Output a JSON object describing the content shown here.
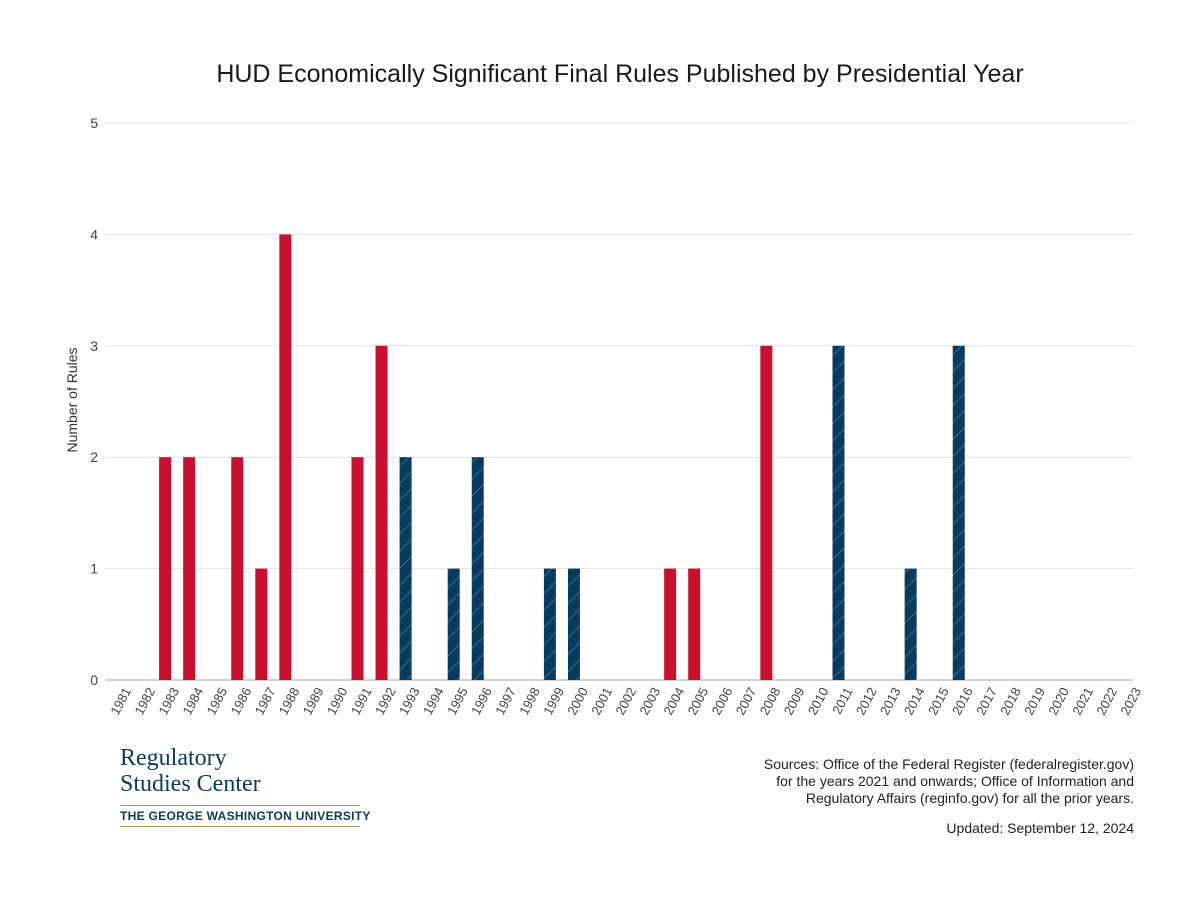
{
  "chart_data": {
    "type": "bar",
    "title": "HUD Economically Significant Final Rules Published by Presidential Year",
    "ylabel": "Number of Rules",
    "xlabel": "",
    "ylim": [
      0,
      5
    ],
    "yticks": [
      0,
      1,
      2,
      3,
      4,
      5
    ],
    "grid": true,
    "categories": [
      "1981",
      "1982",
      "1983",
      "1984",
      "1985",
      "1986",
      "1987",
      "1988",
      "1989",
      "1990",
      "1991",
      "1992",
      "1993",
      "1994",
      "1995",
      "1996",
      "1997",
      "1998",
      "1999",
      "2000",
      "2001",
      "2002",
      "2003",
      "2004",
      "2005",
      "2006",
      "2007",
      "2008",
      "2009",
      "2010",
      "2011",
      "2012",
      "2013",
      "2014",
      "2015",
      "2016",
      "2017",
      "2018",
      "2019",
      "2020",
      "2021",
      "2022",
      "2023"
    ],
    "values": [
      0,
      0,
      2,
      2,
      0,
      2,
      1,
      4,
      0,
      0,
      2,
      3,
      2,
      0,
      1,
      2,
      0,
      0,
      1,
      1,
      0,
      0,
      0,
      1,
      1,
      0,
      0,
      3,
      0,
      0,
      3,
      0,
      0,
      1,
      0,
      3,
      0,
      0,
      0,
      0,
      0,
      0,
      0
    ],
    "bar_party": [
      "R",
      "R",
      "R",
      "R",
      "R",
      "R",
      "R",
      "R",
      "R",
      "R",
      "R",
      "R",
      "D",
      "D",
      "D",
      "D",
      "D",
      "D",
      "D",
      "D",
      "R",
      "R",
      "R",
      "R",
      "R",
      "R",
      "R",
      "R",
      "D",
      "D",
      "D",
      "D",
      "D",
      "D",
      "D",
      "D",
      "R",
      "R",
      "R",
      "R",
      "D",
      "D",
      "D"
    ],
    "colors": {
      "R": "#c8102e",
      "D": "#0b3a5c",
      "D_hatch": "#2a86c8"
    }
  },
  "footer": {
    "logo_line1": "Regulatory",
    "logo_line2": "Studies Center",
    "logo_line3": "THE GEORGE WASHINGTON UNIVERSITY",
    "sources_line1": "Sources: Office of the Federal Register (federalregister.gov)",
    "sources_line2": "for the years 2021 and onwards; Office of Information and",
    "sources_line3": "Regulatory Affairs (reginfo.gov) for all the prior years.",
    "updated": "Updated: September 12, 2024"
  }
}
